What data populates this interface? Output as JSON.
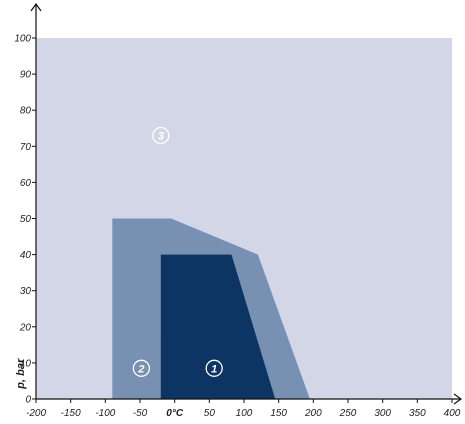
{
  "chart_data": {
    "type": "area",
    "title": "",
    "xlabel": "",
    "ylabel": "p, bar",
    "xlim": [
      -200,
      400
    ],
    "ylim": [
      0,
      100
    ],
    "x_ticks": [
      {
        "value": -200,
        "label": "-200"
      },
      {
        "value": -150,
        "label": "-150"
      },
      {
        "value": -100,
        "label": "-100"
      },
      {
        "value": -50,
        "label": "-50"
      },
      {
        "value": 0,
        "label": "0°C"
      },
      {
        "value": 50,
        "label": "50"
      },
      {
        "value": 100,
        "label": "100"
      },
      {
        "value": 150,
        "label": "150"
      },
      {
        "value": 200,
        "label": "200"
      },
      {
        "value": 250,
        "label": "250"
      },
      {
        "value": 300,
        "label": "300"
      },
      {
        "value": 350,
        "label": "350"
      },
      {
        "value": 400,
        "label": "400"
      }
    ],
    "y_ticks": [
      0,
      10,
      20,
      30,
      40,
      50,
      60,
      70,
      80,
      90,
      100
    ],
    "grid": false,
    "series": [
      {
        "label": "3",
        "color": "#d2d6e6",
        "polygon": [
          [
            -200,
            0
          ],
          [
            -200,
            100
          ],
          [
            400,
            100
          ],
          [
            400,
            0
          ]
        ],
        "label_at": [
          -20,
          73
        ]
      },
      {
        "label": "2",
        "color": "#7891b3",
        "polygon": [
          [
            -90,
            0
          ],
          [
            -90,
            50
          ],
          [
            -5,
            50
          ],
          [
            120,
            40
          ],
          [
            195,
            0
          ]
        ],
        "label_at": [
          -48,
          8.5
        ]
      },
      {
        "label": "1",
        "color": "#0d3563",
        "polygon": [
          [
            -20,
            0
          ],
          [
            -20,
            40
          ],
          [
            82,
            40
          ],
          [
            145,
            0
          ]
        ],
        "label_at": [
          57,
          8.5
        ]
      }
    ]
  }
}
